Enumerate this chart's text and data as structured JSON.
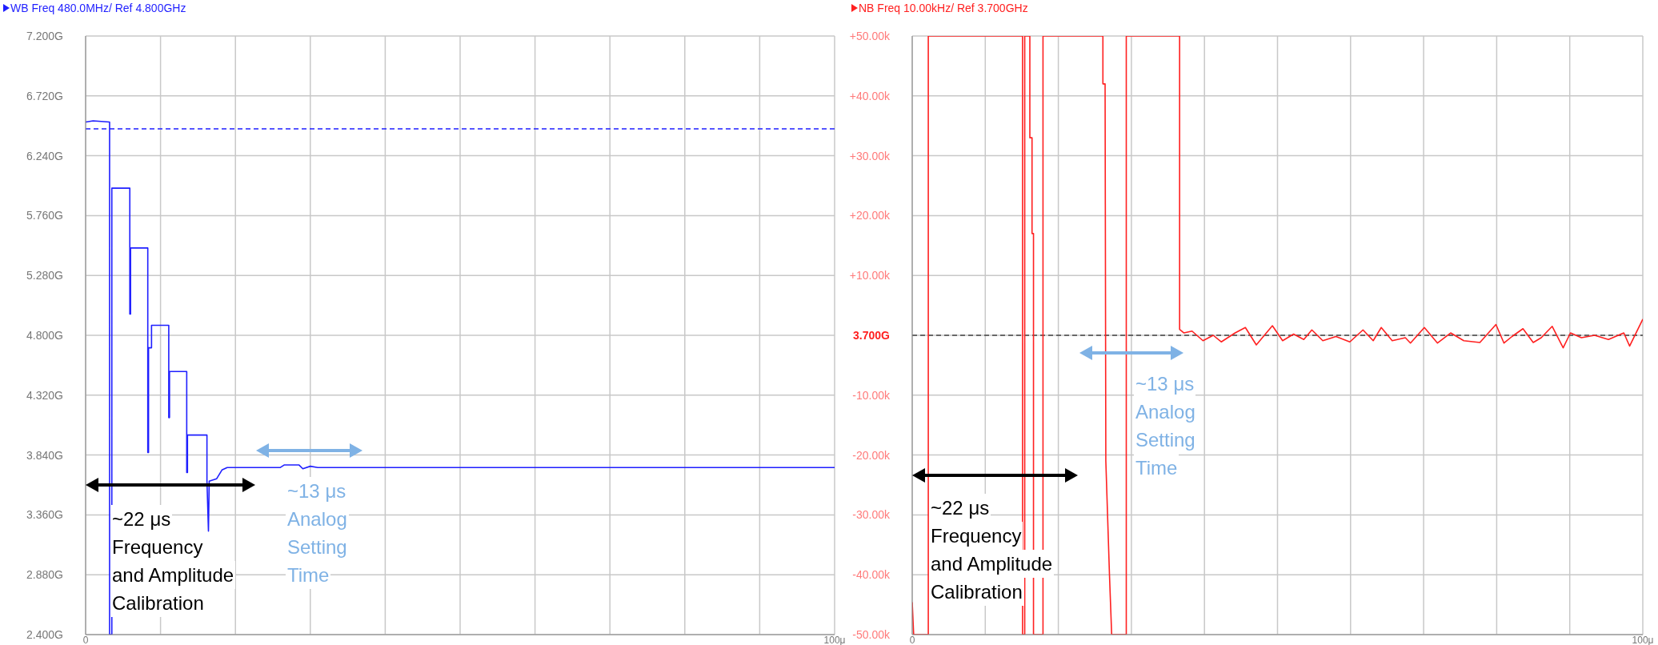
{
  "chart_data": [
    {
      "type": "line",
      "title": "WB Freq 480.0MHz/ Ref 4.800GHz",
      "color": "#1f1fff",
      "grid": true,
      "x": [
        0,
        1,
        3.2,
        3.2,
        3.5,
        3.5,
        5.9,
        5.9,
        6,
        6,
        8.3,
        8.3,
        8.4,
        8.4,
        8.8,
        8.8,
        11.1,
        11.1,
        11.2,
        11.2,
        13.5,
        13.5,
        13.6,
        13.6,
        16.2,
        16.2,
        16.4,
        16.5,
        17.5,
        18.2,
        18.9,
        26,
        26.5,
        28.5,
        29,
        30,
        31,
        100
      ],
      "values": [
        6.51,
        6.52,
        6.51,
        2.4,
        2.4,
        5.98,
        5.98,
        4.97,
        4.97,
        5.5,
        5.5,
        3.86,
        3.86,
        4.7,
        4.7,
        4.88,
        4.88,
        4.14,
        4.14,
        4.51,
        4.51,
        3.7,
        3.7,
        4.0,
        4.0,
        3.63,
        3.23,
        3.63,
        3.65,
        3.72,
        3.74,
        3.74,
        3.76,
        3.76,
        3.73,
        3.75,
        3.74,
        3.74
      ],
      "xlim": [
        0,
        100
      ],
      "xticks": [
        {
          "value": 0,
          "label": "0"
        },
        {
          "value": 10,
          "label": null
        },
        {
          "value": 20,
          "label": null
        },
        {
          "value": 30,
          "label": null
        },
        {
          "value": 40,
          "label": null
        },
        {
          "value": 50,
          "label": null
        },
        {
          "value": 60,
          "label": null
        },
        {
          "value": 70,
          "label": null
        },
        {
          "value": 80,
          "label": null
        },
        {
          "value": 90,
          "label": null
        },
        {
          "value": 100,
          "label": "100μ"
        }
      ],
      "ylim": [
        2.4,
        7.2
      ],
      "yticks": [
        {
          "value": 2.4,
          "label": "2.400G"
        },
        {
          "value": 2.88,
          "label": "2.880G"
        },
        {
          "value": 3.36,
          "label": "3.360G"
        },
        {
          "value": 3.84,
          "label": "3.840G"
        },
        {
          "value": 4.32,
          "label": "4.320G"
        },
        {
          "value": 4.8,
          "label": "4.800G"
        },
        {
          "value": 5.28,
          "label": "5.280G"
        },
        {
          "value": 5.76,
          "label": "5.760G"
        },
        {
          "value": 6.24,
          "label": "6.240G"
        },
        {
          "value": 6.72,
          "label": "6.720G"
        },
        {
          "value": 7.2,
          "label": "7.200G"
        }
      ],
      "ref_lines": [
        {
          "axis": "y",
          "value": 6.455,
          "color": "#1f1fff",
          "line_style": "dashed"
        }
      ],
      "annotations": [
        "~22 μs\nFrequency\nand Amplitude\nCalibration",
        "~13 μs\nAnalog\nSetting\nTime"
      ]
    },
    {
      "type": "line",
      "title": "NB Freq 10.00kHz/ Ref 3.700GHz",
      "color": "#ff2020",
      "grid": true,
      "x": [
        0,
        0.2,
        2.2,
        2.2,
        15.1,
        15.1,
        15.4,
        15.4,
        16.1,
        16.1,
        16.4,
        16.4,
        16.6,
        16.6,
        17.9,
        17.9,
        26.1,
        26.1,
        26.4,
        26.5,
        27,
        27.3,
        29.3,
        29.3,
        36.6,
        36.6,
        37.2,
        38.3,
        39.8,
        41.2,
        42.3,
        44.2,
        45.6,
        47.1,
        49.3,
        50.7,
        52.2,
        53.6,
        54.7,
        56.2,
        58,
        59.9,
        61.7,
        63.1,
        64.2,
        65.7,
        67.5,
        68.2,
        70.1,
        71.9,
        73.7,
        75.5,
        77.7,
        79.9,
        81,
        82.1,
        83.6,
        85,
        86.1,
        87.6,
        89.1,
        90.1,
        91.6,
        93.4,
        95.3,
        97.4,
        98.2,
        100
      ],
      "values": [
        -44.6,
        -50,
        -50,
        50,
        50,
        -50,
        -50,
        50,
        50,
        33,
        33,
        17,
        17,
        -50,
        -50,
        50,
        50,
        42,
        42,
        -21,
        -40,
        -50,
        -50,
        50,
        50,
        1,
        0.4,
        0.7,
        -0.9,
        0,
        -1.1,
        0.4,
        1.3,
        -1.6,
        1.6,
        -0.9,
        0.2,
        -0.7,
        0.9,
        -0.9,
        -0.2,
        -1.1,
        0.9,
        -0.9,
        1.3,
        -0.9,
        -0.4,
        -1.3,
        1.3,
        -1.3,
        0.4,
        -0.9,
        -1.2,
        1.8,
        -1.3,
        -0.2,
        1.1,
        -1.2,
        -0.4,
        1.5,
        -2.1,
        0.4,
        -0.4,
        0,
        -0.7,
        0.4,
        -1.8,
        2.7
      ],
      "xlim": [
        0,
        100
      ],
      "xticks": [
        {
          "value": 0,
          "label": "0"
        },
        {
          "value": 10,
          "label": null
        },
        {
          "value": 20,
          "label": null
        },
        {
          "value": 30,
          "label": null
        },
        {
          "value": 40,
          "label": null
        },
        {
          "value": 50,
          "label": null
        },
        {
          "value": 60,
          "label": null
        },
        {
          "value": 70,
          "label": null
        },
        {
          "value": 80,
          "label": null
        },
        {
          "value": 90,
          "label": null
        },
        {
          "value": 100,
          "label": "100μ"
        }
      ],
      "ylim": [
        -50,
        50
      ],
      "yticks": [
        {
          "value": -50,
          "label": "-50.00k"
        },
        {
          "value": -40,
          "label": "-40.00k"
        },
        {
          "value": -30,
          "label": "-30.00k"
        },
        {
          "value": -20,
          "label": "-20.00k"
        },
        {
          "value": -10,
          "label": "-10.00k"
        },
        {
          "value": 0,
          "label": null
        },
        {
          "value": 10,
          "label": "+10.00k"
        },
        {
          "value": 20,
          "label": "+20.00k"
        },
        {
          "value": 30,
          "label": "+30.00k"
        },
        {
          "value": 40,
          "label": "+40.00k"
        },
        {
          "value": 50,
          "label": "+50.00k"
        }
      ],
      "ref_lines": [
        {
          "axis": "y",
          "value": 0,
          "label": "3.700G",
          "color": "#444444",
          "line_style": "dashed"
        }
      ],
      "annotations": [
        "~22 μs\nFrequency\nand Amplitude\nCalibration",
        "~13 μs\nAnalog\nSetting\nTime"
      ]
    }
  ]
}
